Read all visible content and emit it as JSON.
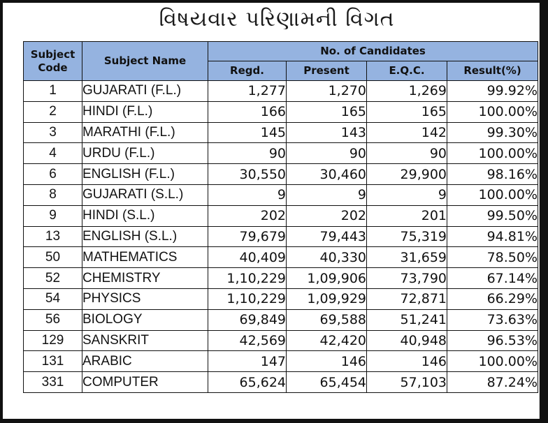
{
  "title": "વિષયવાર પરિણામની વિગત",
  "table": {
    "headers": {
      "subject_code": "Subject Code",
      "subject_name": "Subject Name",
      "group": "No. of Candidates",
      "regd": "Regd.",
      "present": "Present",
      "eqc": "E.Q.C.",
      "result": "Result(%)"
    },
    "rows": [
      {
        "code": "1",
        "name": "GUJARATI (F.L.)",
        "regd": "1,277",
        "present": "1,270",
        "eqc": "1,269",
        "result": "99.92%"
      },
      {
        "code": "2",
        "name": "HINDI (F.L.)",
        "regd": "166",
        "present": "165",
        "eqc": "165",
        "result": "100.00%"
      },
      {
        "code": "3",
        "name": "MARATHI (F.L.)",
        "regd": "145",
        "present": "143",
        "eqc": "142",
        "result": "99.30%"
      },
      {
        "code": "4",
        "name": "URDU (F.L.)",
        "regd": "90",
        "present": "90",
        "eqc": "90",
        "result": "100.00%"
      },
      {
        "code": "6",
        "name": "ENGLISH (F.L.)",
        "regd": "30,550",
        "present": "30,460",
        "eqc": "29,900",
        "result": "98.16%"
      },
      {
        "code": "8",
        "name": "GUJARATI (S.L.)",
        "regd": "9",
        "present": "9",
        "eqc": "9",
        "result": "100.00%"
      },
      {
        "code": "9",
        "name": "HINDI (S.L.)",
        "regd": "202",
        "present": "202",
        "eqc": "201",
        "result": "99.50%"
      },
      {
        "code": "13",
        "name": "ENGLISH (S.L.)",
        "regd": "79,679",
        "present": "79,443",
        "eqc": "75,319",
        "result": "94.81%"
      },
      {
        "code": "50",
        "name": "MATHEMATICS",
        "regd": "40,409",
        "present": "40,330",
        "eqc": "31,659",
        "result": "78.50%"
      },
      {
        "code": "52",
        "name": "CHEMISTRY",
        "regd": "1,10,229",
        "present": "1,09,906",
        "eqc": "73,790",
        "result": "67.14%"
      },
      {
        "code": "54",
        "name": "PHYSICS",
        "regd": "1,10,229",
        "present": "1,09,929",
        "eqc": "72,871",
        "result": "66.29%"
      },
      {
        "code": "56",
        "name": "BIOLOGY",
        "regd": "69,849",
        "present": "69,588",
        "eqc": "51,241",
        "result": "73.63%"
      },
      {
        "code": "129",
        "name": "SANSKRIT",
        "regd": "42,569",
        "present": "42,420",
        "eqc": "40,948",
        "result": "96.53%"
      },
      {
        "code": "131",
        "name": "ARABIC",
        "regd": "147",
        "present": "146",
        "eqc": "146",
        "result": "100.00%"
      },
      {
        "code": "331",
        "name": "COMPUTER",
        "regd": "65,624",
        "present": "65,454",
        "eqc": "57,103",
        "result": "87.24%"
      }
    ]
  },
  "colors": {
    "header_bg": "#95b3e0",
    "frame": "#111111"
  }
}
